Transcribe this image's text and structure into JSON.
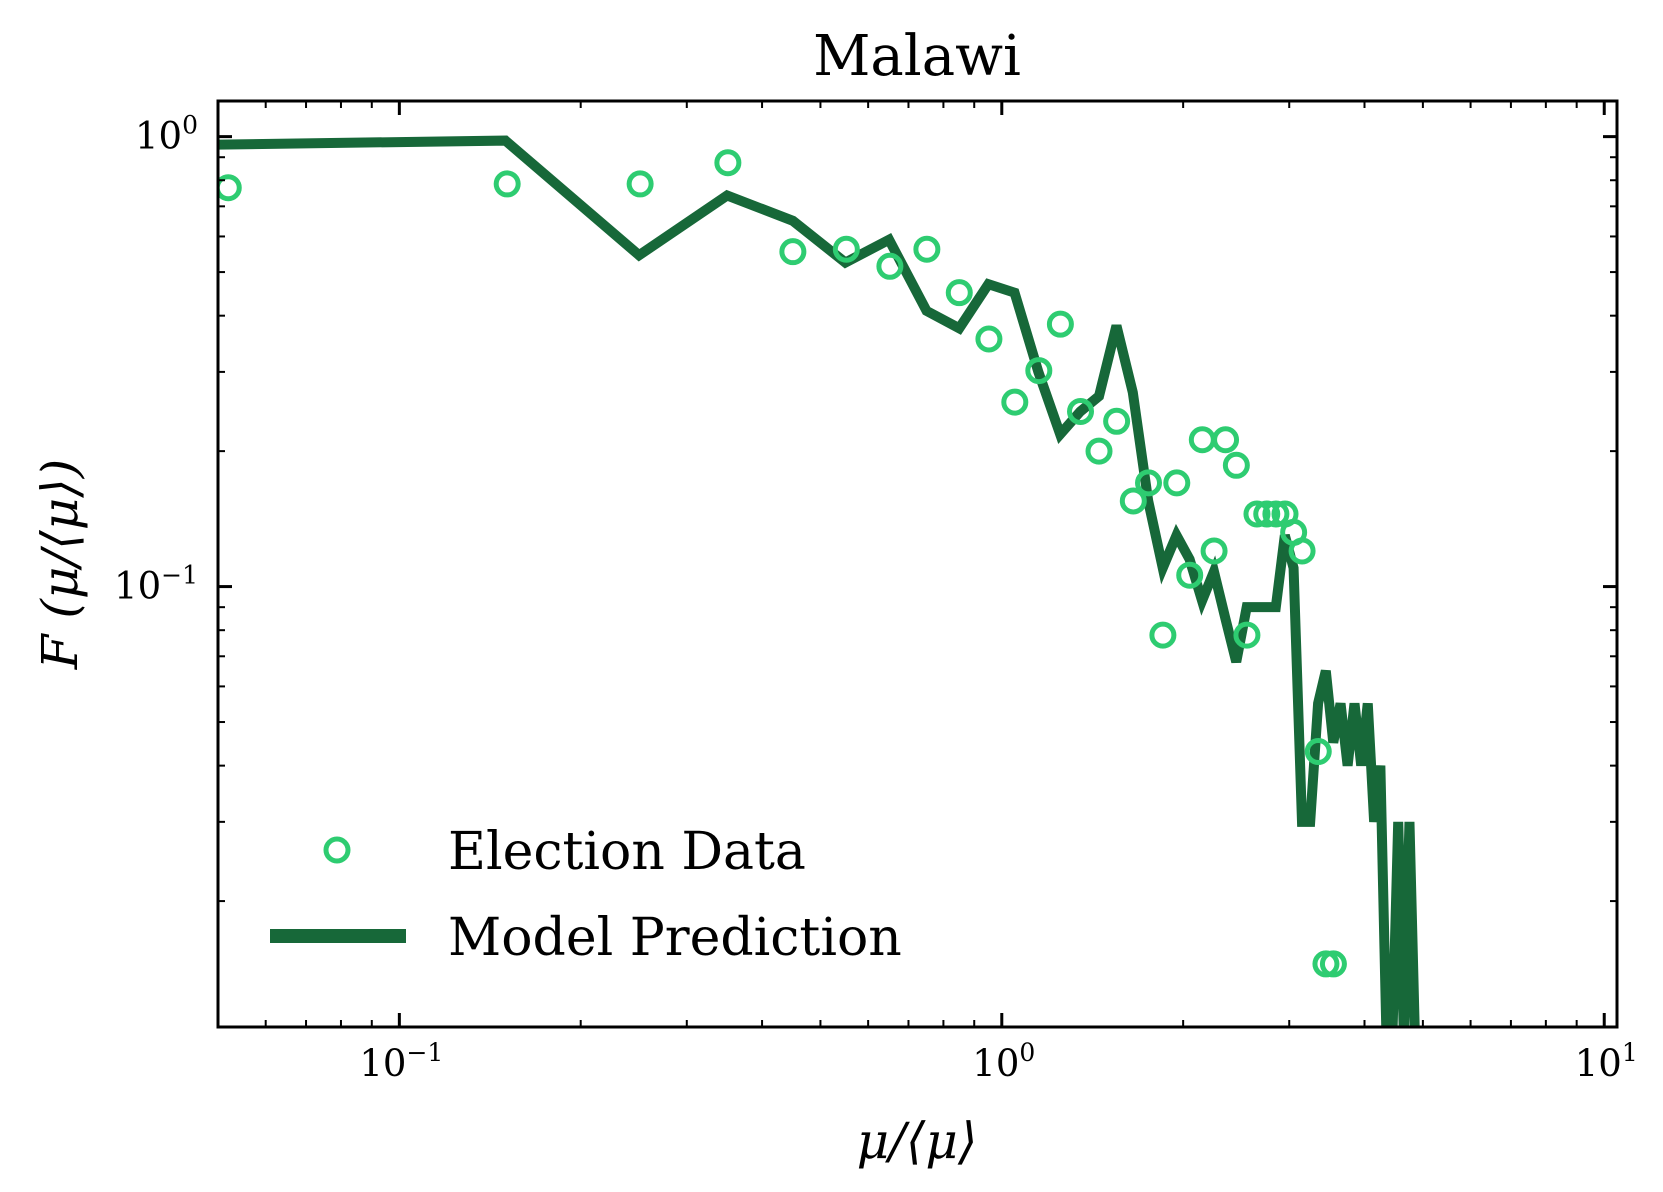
{
  "chart_data": {
    "type": "line",
    "title": "Malawi",
    "xlabel": "μ/⟨μ⟩",
    "ylabel": "F (μ/⟨μ⟩)",
    "x_scale": "log",
    "y_scale": "log",
    "xlim": [
      0.05,
      10.5
    ],
    "ylim": [
      0.0105,
      1.2
    ],
    "grid": false,
    "legend_position": "bottom-left",
    "x_ticks": [
      {
        "value": 0.1,
        "base": "10",
        "exponent": "−1"
      },
      {
        "value": 1,
        "base": "10",
        "exponent": "0"
      },
      {
        "value": 10,
        "base": "10",
        "exponent": "1"
      }
    ],
    "y_ticks": [
      {
        "value": 0.1,
        "base": "10",
        "exponent": "−1"
      },
      {
        "value": 1,
        "base": "10",
        "exponent": "0"
      }
    ],
    "colors": {
      "election": "#2ecc71",
      "model": "#176839"
    },
    "series": [
      {
        "name": "Election Data",
        "style": "markers",
        "points": [
          [
            0.052,
            0.77
          ],
          [
            0.151,
            0.785
          ],
          [
            0.251,
            0.785
          ],
          [
            0.351,
            0.875
          ],
          [
            0.45,
            0.555
          ],
          [
            0.552,
            0.562
          ],
          [
            0.652,
            0.515
          ],
          [
            0.751,
            0.562
          ],
          [
            0.85,
            0.45
          ],
          [
            0.952,
            0.355
          ],
          [
            1.051,
            0.257
          ],
          [
            1.152,
            0.302
          ],
          [
            1.251,
            0.383
          ],
          [
            1.351,
            0.245
          ],
          [
            1.45,
            0.2
          ],
          [
            1.551,
            0.233
          ],
          [
            1.653,
            0.155
          ],
          [
            1.752,
            0.17
          ],
          [
            1.851,
            0.078
          ],
          [
            1.952,
            0.17
          ],
          [
            2.051,
            0.106
          ],
          [
            2.152,
            0.212
          ],
          [
            2.251,
            0.12
          ],
          [
            2.352,
            0.212
          ],
          [
            2.451,
            0.186
          ],
          [
            2.552,
            0.078
          ],
          [
            2.652,
            0.145
          ],
          [
            2.753,
            0.145
          ],
          [
            2.851,
            0.145
          ],
          [
            2.952,
            0.145
          ],
          [
            3.051,
            0.132
          ],
          [
            3.151,
            0.12
          ],
          [
            3.352,
            0.043
          ],
          [
            3.452,
            0.0145
          ],
          [
            3.552,
            0.0145
          ]
        ]
      },
      {
        "name": "Model Prediction",
        "style": "line",
        "points": [
          [
            0.05,
            0.96
          ],
          [
            0.15,
            0.98
          ],
          [
            0.25,
            0.545
          ],
          [
            0.35,
            0.74
          ],
          [
            0.45,
            0.65
          ],
          [
            0.55,
            0.525
          ],
          [
            0.65,
            0.59
          ],
          [
            0.75,
            0.41
          ],
          [
            0.85,
            0.375
          ],
          [
            0.95,
            0.47
          ],
          [
            1.05,
            0.45
          ],
          [
            1.15,
            0.3
          ],
          [
            1.25,
            0.218
          ],
          [
            1.35,
            0.245
          ],
          [
            1.45,
            0.265
          ],
          [
            1.55,
            0.38
          ],
          [
            1.65,
            0.27
          ],
          [
            1.75,
            0.155
          ],
          [
            1.85,
            0.11
          ],
          [
            1.95,
            0.13
          ],
          [
            2.05,
            0.115
          ],
          [
            2.15,
            0.093
          ],
          [
            2.25,
            0.108
          ],
          [
            2.35,
            0.085
          ],
          [
            2.45,
            0.068
          ],
          [
            2.55,
            0.09
          ],
          [
            2.65,
            0.09
          ],
          [
            2.75,
            0.09
          ],
          [
            2.85,
            0.09
          ],
          [
            2.95,
            0.13
          ],
          [
            3.05,
            0.11
          ],
          [
            3.15,
            0.03
          ],
          [
            3.25,
            0.03
          ],
          [
            3.35,
            0.055
          ],
          [
            3.45,
            0.065
          ],
          [
            3.55,
            0.045
          ],
          [
            3.65,
            0.055
          ],
          [
            3.75,
            0.04
          ],
          [
            3.85,
            0.055
          ],
          [
            3.95,
            0.04
          ],
          [
            4.05,
            0.055
          ],
          [
            4.15,
            0.03
          ],
          [
            4.25,
            0.04
          ],
          [
            4.35,
            0.01
          ],
          [
            4.45,
            0.01
          ],
          [
            4.55,
            0.03
          ],
          [
            4.65,
            0.01
          ],
          [
            4.75,
            0.03
          ],
          [
            4.85,
            0.01
          ]
        ]
      }
    ]
  }
}
